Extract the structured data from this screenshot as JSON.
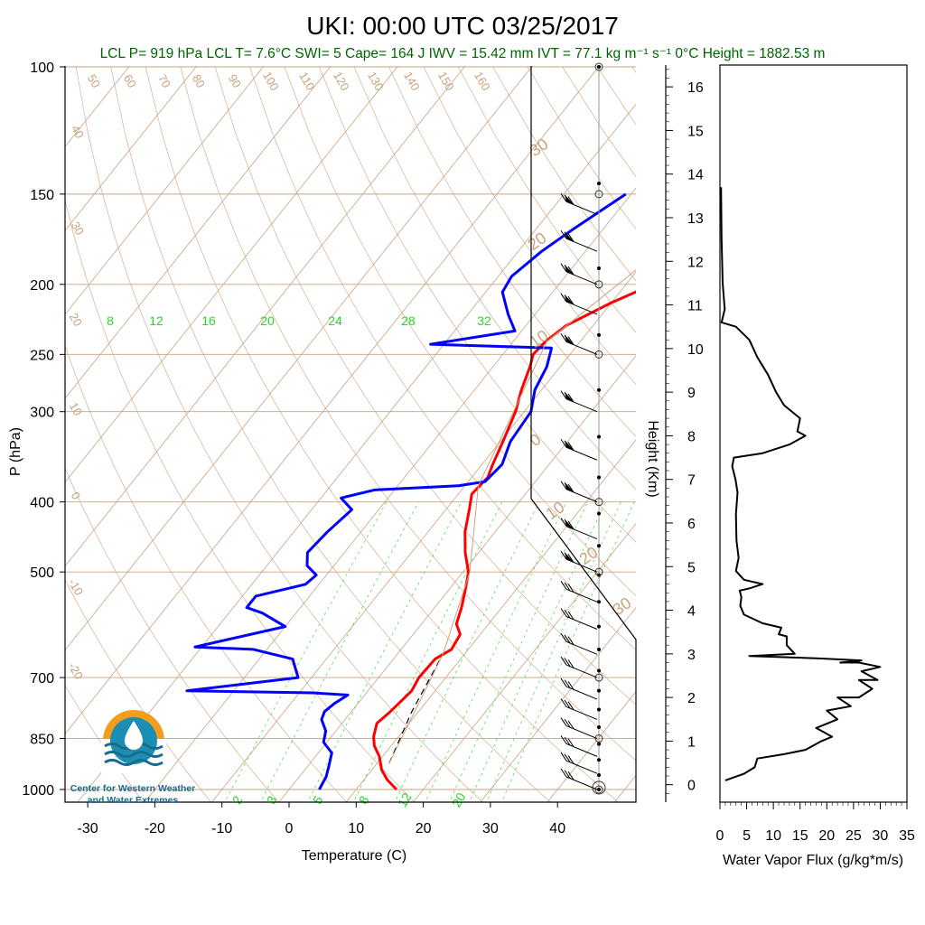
{
  "title": "UKI: 00:00 UTC 03/25/2017",
  "subtitle": "LCL P= 919 hPa  LCL T= 7.6°C  SWI= 5  Cape= 164 J  IWV = 15.42 mm  IVT = 77.1 kg m⁻¹ s⁻¹   0°C Height = 1882.53 m",
  "logo": {
    "line1": "Center for Western Weather",
    "line2": "and Water Extremes"
  },
  "colors": {
    "temperature": "#ff0000",
    "dewpoint": "#0000ff",
    "isotherm": "#c9a27e",
    "mixing_ratio": "#22dd22",
    "flux": "#000000"
  },
  "chart_data": [
    {
      "type": "line",
      "title": "UKI: 00:00 UTC 03/25/2017",
      "xlabel": "Temperature (C)",
      "ylabel": "P (hPa)",
      "xlim": [
        -35,
        50
      ],
      "ylim": [
        1020,
        100
      ],
      "y_scale": "log",
      "x_ticks": [
        -30,
        -20,
        -10,
        0,
        10,
        20,
        30,
        40
      ],
      "y_ticks": [
        100,
        150,
        200,
        250,
        300,
        400,
        500,
        700,
        850,
        1000
      ],
      "mixing_ratio_labels_top": [
        "8",
        "12",
        "16",
        "20",
        "24",
        "28",
        "32"
      ],
      "mixing_ratio_labels_bottom": [
        "2",
        "3",
        "5",
        "8",
        "12",
        "20"
      ],
      "isotherm_labels": [
        "50",
        "60",
        "70",
        "80",
        "90",
        "100",
        "110",
        "120",
        "130",
        "140",
        "150",
        "160",
        "40",
        "30",
        "20",
        "10",
        "0",
        "-10",
        "-20"
      ],
      "right_labels": [
        "30",
        "20",
        "10",
        "0",
        "10",
        "20",
        "30"
      ],
      "series": [
        {
          "name": "Temperature",
          "color": "#ff0000",
          "points": [
            [
              16.0,
              1000
            ],
            [
              13.5,
              970
            ],
            [
              11.5,
              940
            ],
            [
              9.5,
              900
            ],
            [
              7.5,
              870
            ],
            [
              6.3,
              845
            ],
            [
              5.2,
              810
            ],
            [
              5.8,
              780
            ],
            [
              6.5,
              730
            ],
            [
              6.0,
              700
            ],
            [
              6.2,
              660
            ],
            [
              7.5,
              640
            ],
            [
              7.0,
              610
            ],
            [
              5.2,
              590
            ],
            [
              4.0,
              560
            ],
            [
              2.5,
              530
            ],
            [
              0.8,
              500
            ],
            [
              -2.0,
              470
            ],
            [
              -4.5,
              440
            ],
            [
              -6.5,
              410
            ],
            [
              -8.0,
              390
            ],
            [
              -7.8,
              380
            ],
            [
              -7.6,
              370
            ],
            [
              -8.4,
              355
            ],
            [
              -9.6,
              330
            ],
            [
              -11.3,
              300
            ],
            [
              -13.0,
              280
            ],
            [
              -14.5,
              260
            ],
            [
              -15.5,
              250
            ],
            [
              -15.2,
              240
            ],
            [
              -14.0,
              228
            ],
            [
              -10.0,
              212
            ],
            [
              -6.0,
              200
            ],
            [
              -4.5,
              190
            ],
            [
              -3.0,
              180
            ],
            [
              -1.5,
              172
            ],
            [
              0.5,
              165
            ],
            [
              2.0,
              158
            ],
            [
              3.5,
              152
            ],
            [
              3.8,
              150
            ]
          ]
        },
        {
          "name": "Dewpoint",
          "color": "#0000ff",
          "points": [
            [
              4.5,
              1000
            ],
            [
              4.0,
              960
            ],
            [
              3.2,
              930
            ],
            [
              2.0,
              890
            ],
            [
              -0.5,
              860
            ],
            [
              -1.5,
              830
            ],
            [
              -3.5,
              800
            ],
            [
              -4.0,
              780
            ],
            [
              -3.5,
              760
            ],
            [
              -2.5,
              740
            ],
            [
              -8.0,
              735
            ],
            [
              -27.0,
              730
            ],
            [
              -12.0,
              700
            ],
            [
              -15.0,
              660
            ],
            [
              -22.0,
              640
            ],
            [
              -31.0,
              635
            ],
            [
              -20.0,
              595
            ],
            [
              -25.0,
              570
            ],
            [
              -28.0,
              560
            ],
            [
              -28.0,
              540
            ],
            [
              -22.0,
              520
            ],
            [
              -21.5,
              505
            ],
            [
              -24.0,
              490
            ],
            [
              -25.5,
              470
            ],
            [
              -25.0,
              440
            ],
            [
              -24.0,
              410
            ],
            [
              -27.0,
              395
            ],
            [
              -23.0,
              385
            ],
            [
              -11.0,
              380
            ],
            [
              -7.5,
              375
            ],
            [
              -7.0,
              355
            ],
            [
              -8.5,
              330
            ],
            [
              -9.0,
              300
            ],
            [
              -11.0,
              280
            ],
            [
              -12.0,
              260
            ],
            [
              -13.5,
              245
            ],
            [
              -32.0,
              242
            ],
            [
              -21.0,
              232
            ],
            [
              -24.0,
              220
            ],
            [
              -27.5,
              205
            ],
            [
              -28.0,
              195
            ],
            [
              -26.5,
              180
            ],
            [
              -24.5,
              168
            ],
            [
              -22.5,
              158
            ],
            [
              -20.8,
              150
            ]
          ]
        },
        {
          "name": "Parcel",
          "color": "#000000",
          "points": [
            [
              11.8,
              920
            ],
            [
              9.0,
              780
            ],
            [
              6.8,
              650
            ]
          ]
        },
        {
          "name": "Environment lapse",
          "color": "#c9a27e",
          "points": [
            [
              11.8,
              920
            ],
            [
              6.8,
              650
            ],
            [
              1.0,
              500
            ],
            [
              -8.0,
              380
            ],
            [
              -15.0,
              240
            ],
            [
              -9.0,
              180
            ],
            [
              0.0,
              135
            ],
            [
              22.0,
              100
            ]
          ]
        }
      ],
      "wind_barbs_pressure": [
        1000,
        950,
        900,
        850,
        800,
        750,
        700,
        650,
        600,
        550,
        500,
        450,
        400,
        350,
        300,
        250,
        220,
        200,
        180,
        160
      ]
    },
    {
      "type": "line",
      "xlabel": "Water Vapor Flux (g/kg*m/s)",
      "ylabel": "Height (Km)",
      "xlim": [
        0,
        35
      ],
      "ylim": [
        -0.4,
        16.5
      ],
      "x_ticks": [
        0,
        5,
        10,
        15,
        20,
        25,
        30,
        35
      ],
      "y_ticks": [
        0,
        1,
        2,
        3,
        4,
        5,
        6,
        7,
        8,
        9,
        10,
        11,
        12,
        13,
        14,
        15,
        16
      ],
      "series": [
        {
          "name": "Water Vapor Flux",
          "color": "#000000",
          "points": [
            [
              1.0,
              0.1
            ],
            [
              4.5,
              0.25
            ],
            [
              6.5,
              0.4
            ],
            [
              7.0,
              0.6
            ],
            [
              12.0,
              0.7
            ],
            [
              16.0,
              0.8
            ],
            [
              19.0,
              1.0
            ],
            [
              21.0,
              1.1
            ],
            [
              18.0,
              1.3
            ],
            [
              22.0,
              1.5
            ],
            [
              20.0,
              1.7
            ],
            [
              24.5,
              1.8
            ],
            [
              22.0,
              2.0
            ],
            [
              26.0,
              2.0
            ],
            [
              28.5,
              2.2
            ],
            [
              26.0,
              2.4
            ],
            [
              29.5,
              2.4
            ],
            [
              26.5,
              2.6
            ],
            [
              30.0,
              2.7
            ],
            [
              26.0,
              2.8
            ],
            [
              22.5,
              2.8
            ],
            [
              26.5,
              2.85
            ],
            [
              18.0,
              2.9
            ],
            [
              5.5,
              2.95
            ],
            [
              14.0,
              3.0
            ],
            [
              12.5,
              3.2
            ],
            [
              12.5,
              3.4
            ],
            [
              11.0,
              3.45
            ],
            [
              11.5,
              3.6
            ],
            [
              8.0,
              3.7
            ],
            [
              4.5,
              3.9
            ],
            [
              3.8,
              4.1
            ],
            [
              4.0,
              4.3
            ],
            [
              3.7,
              4.45
            ],
            [
              5.5,
              4.5
            ],
            [
              8.0,
              4.6
            ],
            [
              4.5,
              4.7
            ],
            [
              3.0,
              4.9
            ],
            [
              3.5,
              5.2
            ],
            [
              3.1,
              5.6
            ],
            [
              3.0,
              6.2
            ],
            [
              3.3,
              6.7
            ],
            [
              2.9,
              7.0
            ],
            [
              2.3,
              7.3
            ],
            [
              2.6,
              7.5
            ],
            [
              8.0,
              7.6
            ],
            [
              13.0,
              7.8
            ],
            [
              16.0,
              8.0
            ],
            [
              14.5,
              8.1
            ],
            [
              15.0,
              8.4
            ],
            [
              12.0,
              8.7
            ],
            [
              10.5,
              9.0
            ],
            [
              9.0,
              9.4
            ],
            [
              7.0,
              9.8
            ],
            [
              5.5,
              10.2
            ],
            [
              3.0,
              10.5
            ],
            [
              0.3,
              10.6
            ],
            [
              0.9,
              10.9
            ],
            [
              0.5,
              11.5
            ],
            [
              0.3,
              12.5
            ],
            [
              0.2,
              13.7
            ]
          ]
        }
      ]
    }
  ]
}
